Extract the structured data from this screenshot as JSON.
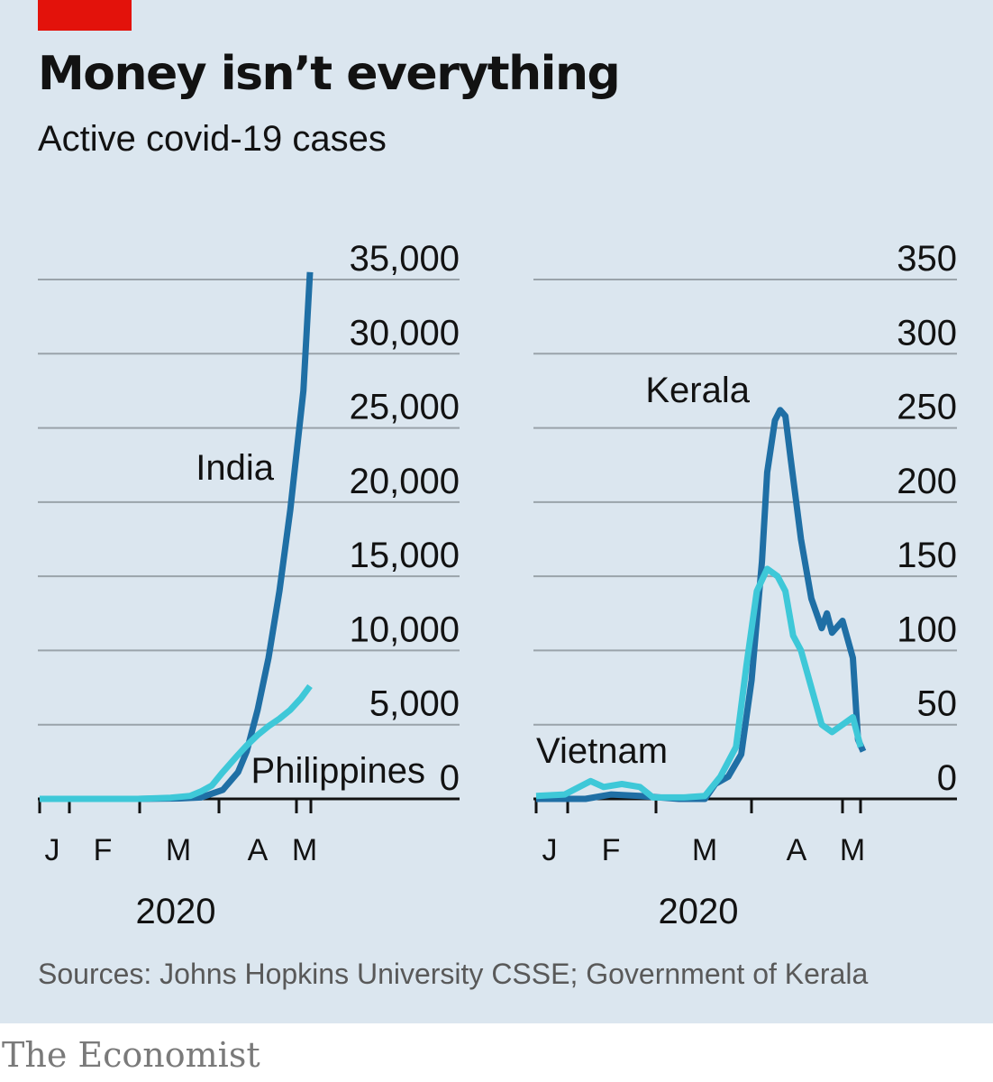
{
  "header": {
    "title": "Money isn’t everything",
    "subtitle": "Active covid-19 cases"
  },
  "footer": {
    "source": "Sources: Johns Hopkins University CSSE; Government of Kerala",
    "brand": "The Economist"
  },
  "colors": {
    "background": "#dbe6ef",
    "dark_blue": "#1f6fa5",
    "light_blue": "#3ec8d8",
    "accent_red": "#e3120b",
    "grid": "#9aa3aa"
  },
  "chart_data": [
    {
      "type": "line",
      "ylim": [
        0,
        35000
      ],
      "yticks": [
        "35,000",
        "30,000",
        "25,000",
        "20,000",
        "15,000",
        "10,000",
        "5,000",
        "0"
      ],
      "x_ticks": [
        "J",
        "F",
        "M",
        "A",
        "M"
      ],
      "x_year": "2020",
      "grid": true,
      "series": [
        {
          "name": "India",
          "color": "#1f6fa5",
          "x": [
            "2020-01-01",
            "2020-02-15",
            "2020-03-05",
            "2020-03-15",
            "2020-03-25",
            "2020-04-01",
            "2020-04-05",
            "2020-04-10",
            "2020-04-15",
            "2020-04-20",
            "2020-04-25",
            "2020-05-01",
            "2020-05-04"
          ],
          "values": [
            0,
            0,
            30,
            100,
            600,
            1800,
            3200,
            6000,
            9500,
            14000,
            19500,
            27500,
            35500
          ]
        },
        {
          "name": "Philippines",
          "color": "#3ec8d8",
          "x": [
            "2020-01-01",
            "2020-02-15",
            "2020-03-01",
            "2020-03-10",
            "2020-03-15",
            "2020-03-20",
            "2020-03-25",
            "2020-03-31",
            "2020-04-05",
            "2020-04-10",
            "2020-04-15",
            "2020-04-20",
            "2020-04-25",
            "2020-04-30",
            "2020-05-04"
          ],
          "values": [
            0,
            0,
            80,
            200,
            500,
            900,
            1800,
            2800,
            3600,
            4300,
            4900,
            5400,
            6000,
            6800,
            7600
          ]
        }
      ]
    },
    {
      "type": "line",
      "ylim": [
        0,
        350
      ],
      "yticks": [
        "350",
        "300",
        "250",
        "200",
        "150",
        "100",
        "50",
        "0"
      ],
      "x_ticks": [
        "J",
        "F",
        "M",
        "A",
        "M"
      ],
      "x_year": "2020",
      "grid": true,
      "series": [
        {
          "name": "Kerala",
          "color": "#1f6fa5",
          "x": [
            "2020-01-01",
            "2020-01-20",
            "2020-01-30",
            "2020-02-10",
            "2020-02-25",
            "2020-03-06",
            "2020-03-10",
            "2020-03-15",
            "2020-03-20",
            "2020-03-24",
            "2020-03-28",
            "2020-03-30",
            "2020-04-02",
            "2020-04-04",
            "2020-04-06",
            "2020-04-08",
            "2020-04-12",
            "2020-04-16",
            "2020-04-20",
            "2020-04-22",
            "2020-04-24",
            "2020-04-28",
            "2020-05-02",
            "2020-05-04",
            "2020-05-06"
          ],
          "values": [
            0,
            0,
            3,
            2,
            0,
            0,
            10,
            15,
            30,
            80,
            160,
            220,
            255,
            262,
            258,
            230,
            175,
            135,
            115,
            125,
            112,
            120,
            95,
            40,
            32
          ]
        },
        {
          "name": "Vietnam",
          "color": "#3ec8d8",
          "x": [
            "2020-01-01",
            "2020-01-12",
            "2020-01-22",
            "2020-01-27",
            "2020-02-03",
            "2020-02-10",
            "2020-02-15",
            "2020-02-27",
            "2020-03-06",
            "2020-03-12",
            "2020-03-18",
            "2020-03-22",
            "2020-03-26",
            "2020-03-30",
            "2020-04-03",
            "2020-04-06",
            "2020-04-09",
            "2020-04-12",
            "2020-04-16",
            "2020-04-20",
            "2020-04-24",
            "2020-04-28",
            "2020-05-02",
            "2020-05-05"
          ],
          "values": [
            2,
            3,
            12,
            8,
            10,
            8,
            1,
            1,
            2,
            15,
            35,
            90,
            140,
            155,
            150,
            140,
            110,
            100,
            75,
            50,
            45,
            50,
            55,
            35
          ]
        }
      ]
    }
  ]
}
